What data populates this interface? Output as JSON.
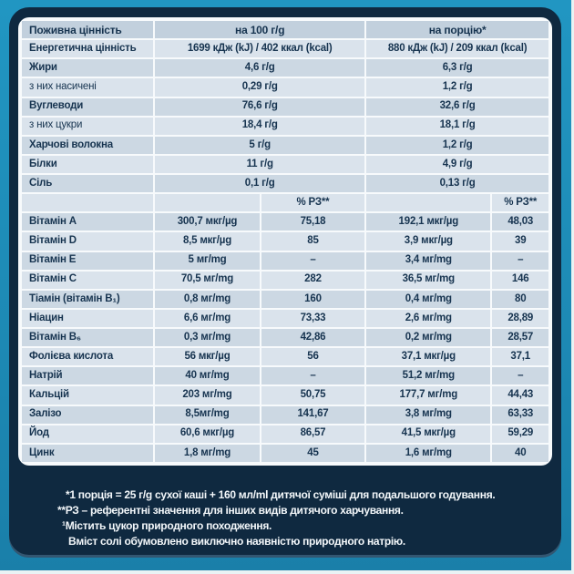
{
  "table": {
    "header": {
      "label": "Поживна цінність",
      "per100": "на 100 г/g",
      "portion": "на порцію*"
    },
    "macro_rows": [
      {
        "label": "Енергетична цінність",
        "bold": true,
        "per100": "1699 кДж (kJ) / 402 ккал (kcal)",
        "portion": "880 кДж (kJ) / 209 ккал (kcal)"
      },
      {
        "label": "Жири",
        "bold": true,
        "per100": "4,6 г/g",
        "portion": "6,3 г/g"
      },
      {
        "label": "з них насичені",
        "bold": false,
        "per100": "0,29 г/g",
        "portion": "1,2 г/g"
      },
      {
        "label": "Вуглеводи",
        "bold": true,
        "per100": "76,6 г/g",
        "portion": "32,6 г/g"
      },
      {
        "label": "з них цукри",
        "bold": false,
        "per100": "18,4 г/g",
        "portion": "18,1 г/g"
      },
      {
        "label": "Харчові волокна",
        "bold": true,
        "per100": "5 г/g",
        "portion": "1,2 г/g"
      },
      {
        "label": "Білки",
        "bold": true,
        "per100": "11 г/g",
        "portion": "4,9 г/g"
      },
      {
        "label": "Сіль",
        "bold": true,
        "per100": "0,1 г/g",
        "portion": "0,13 г/g"
      }
    ],
    "rda_header": "% РЗ**",
    "vitamin_rows": [
      {
        "label": "Вітамін A",
        "per100": "300,7 мкг/µg",
        "pct100": "75,18",
        "portion": "192,1 мкг/µg",
        "pct_portion": "48,03"
      },
      {
        "label": "Вітамін D",
        "per100": "8,5 мкг/µg",
        "pct100": "85",
        "portion": "3,9 мкг/µg",
        "pct_portion": "39"
      },
      {
        "label": "Вітамін E",
        "per100": "5 мг/mg",
        "pct100": "–",
        "portion": "3,4 мг/mg",
        "pct_portion": "–"
      },
      {
        "label": "Вітамін C",
        "per100": "70,5 мг/mg",
        "pct100": "282",
        "portion": "36,5 мг/mg",
        "pct_portion": "146"
      },
      {
        "label": "Тіамін (вітамін В₁)",
        "per100": "0,8 мг/mg",
        "pct100": "160",
        "portion": "0,4 мг/mg",
        "pct_portion": "80"
      },
      {
        "label": "Ніацин",
        "per100": "6,6 мг/mg",
        "pct100": "73,33",
        "portion": "2,6 мг/mg",
        "pct_portion": "28,89"
      },
      {
        "label": "Вітамін В₆",
        "per100": "0,3 мг/mg",
        "pct100": "42,86",
        "portion": "0,2 мг/mg",
        "pct_portion": "28,57"
      },
      {
        "label": "Фолієва кислота",
        "per100": "56 мкг/µg",
        "pct100": "56",
        "portion": "37,1 мкг/µg",
        "pct_portion": "37,1"
      },
      {
        "label": "Натрій",
        "per100": "40 мг/mg",
        "pct100": "–",
        "portion": "51,2 мг/mg",
        "pct_portion": "–"
      },
      {
        "label": "Кальцій",
        "per100": "203 мг/mg",
        "pct100": "50,75",
        "portion": "177,7 мг/mg",
        "pct_portion": "44,43"
      },
      {
        "label": "Залізо",
        "per100": "8,5мг/mg",
        "pct100": "141,67",
        "portion": "3,8 мг/mg",
        "pct_portion": "63,33"
      },
      {
        "label": "Йод",
        "per100": "60,6 мкг/µg",
        "pct100": "86,57",
        "portion": "41,5 мкг/µg",
        "pct_portion": "59,29"
      },
      {
        "label": "Цинк",
        "per100": "1,8 мг/mg",
        "pct100": "45",
        "portion": "1,6 мг/mg",
        "pct_portion": "40"
      }
    ]
  },
  "footnotes": {
    "lines": [
      "*1 порція = 25 г/g сухої каші + 160 мл/ml дитячої суміші для подальшого годування.",
      "**РЗ – референтні значення для інших видів дитячого харчування.",
      "¹Містить цукор природного походження.",
      "Вміст солі обумовлено виключно наявністю природного натрію."
    ]
  },
  "colors": {
    "frame_teal": "#1d89b4",
    "panel_navy": "#0f2940",
    "row_light": "#dae3ec",
    "row_dark": "#ccd8e3",
    "header_row": "#c2d0dd",
    "text_navy": "#173450",
    "footnote_text": "#f3f7fa",
    "table_grid": "#f7fafc"
  }
}
